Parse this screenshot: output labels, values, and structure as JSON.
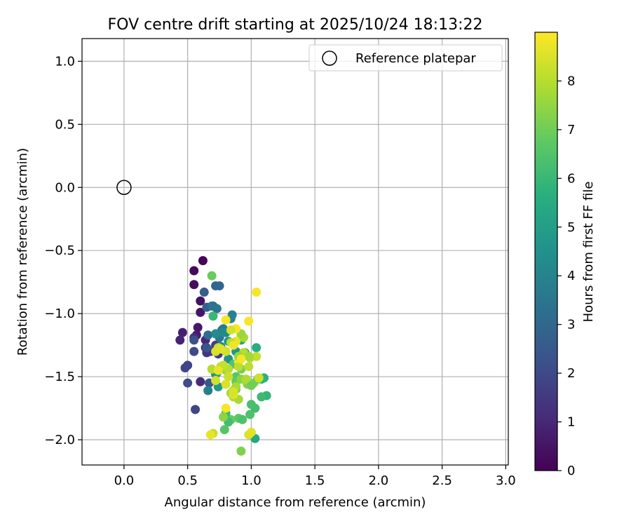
{
  "chart_data": {
    "type": "scatter",
    "title": "FOV centre drift starting at 2025/10/24 18:13:22",
    "xlabel": "Angular distance from reference (arcmin)",
    "ylabel": "Rotation from reference (arcmin)",
    "xlim": [
      -0.33,
      3.02
    ],
    "ylim": [
      -2.2,
      1.18
    ],
    "xticks": [
      0.0,
      0.5,
      1.0,
      1.5,
      2.0,
      2.5,
      3.0
    ],
    "xtick_labels": [
      "0.0",
      "0.5",
      "1.0",
      "1.5",
      "2.0",
      "2.5",
      "3.0"
    ],
    "yticks": [
      1.0,
      0.5,
      0.0,
      -0.5,
      -1.0,
      -1.5,
      -2.0
    ],
    "ytick_labels": [
      "1.0",
      "0.5",
      "0.0",
      "−0.5",
      "−1.0",
      "−1.5",
      "−2.0"
    ],
    "grid": true,
    "legend": {
      "position": "top-right",
      "entries": [
        "Reference platepar"
      ]
    },
    "reference_point": {
      "x": 0.0,
      "y": 0.0,
      "label": "Reference platepar"
    },
    "colorbar": {
      "label": "Hours from first FF file",
      "range": [
        0,
        9
      ],
      "ticks": [
        0,
        1,
        2,
        3,
        4,
        5,
        6,
        7,
        8
      ],
      "tick_labels": [
        "0",
        "1",
        "2",
        "3",
        "4",
        "5",
        "6",
        "7",
        "8"
      ],
      "colormap": "viridis"
    },
    "series": [
      {
        "name": "FOV centre drift",
        "x": [
          0.62,
          0.55,
          0.55,
          0.6,
          0.6,
          0.58,
          0.57,
          0.46,
          0.44,
          0.64,
          0.55,
          0.64,
          0.65,
          0.68,
          0.74,
          0.72,
          0.5,
          0.48,
          0.55,
          0.5,
          0.6,
          0.56,
          0.55,
          0.67,
          0.63,
          0.65,
          0.7,
          0.72,
          0.75,
          0.77,
          0.66,
          0.69,
          0.73,
          0.75,
          0.78,
          0.66,
          0.85,
          0.84,
          0.8,
          0.78,
          0.72,
          0.76,
          0.82,
          0.82,
          0.88,
          0.74,
          0.65,
          0.8,
          0.72,
          0.73,
          0.69,
          0.7,
          0.92,
          0.98,
          0.95,
          1.04,
          1.1,
          1.08,
          1.12,
          1.08,
          1.03,
          1.0,
          0.99,
          1.03,
          0.86,
          0.88,
          0.9,
          0.84,
          0.8,
          0.82,
          0.93,
          0.79,
          0.88,
          0.88,
          0.92,
          1.02,
          0.97,
          0.92,
          0.78,
          0.8,
          0.84,
          0.9,
          0.86,
          1.05,
          0.92,
          0.78,
          0.86,
          0.88,
          0.82,
          0.76,
          0.7,
          0.74,
          0.8,
          0.98,
          1.0,
          0.88,
          0.9,
          0.94,
          0.98,
          1.04,
          1.06,
          0.72,
          0.8,
          0.86,
          0.68,
          0.92,
          0.98,
          0.69,
          0.9,
          0.72,
          0.76,
          0.84,
          0.9,
          0.94,
          0.96,
          0.99,
          0.78,
          0.82,
          0.86,
          0.92,
          0.98,
          0.74,
          0.86,
          0.8,
          0.88,
          0.92,
          1.0,
          1.04,
          0.84,
          0.8
        ],
        "y": [
          -0.58,
          -0.66,
          -0.77,
          -0.9,
          -0.99,
          -1.11,
          -1.17,
          -1.15,
          -1.21,
          -1.21,
          -1.19,
          -1.27,
          -1.31,
          -1.3,
          -1.32,
          -1.25,
          -1.41,
          -1.43,
          -1.3,
          -1.55,
          -1.54,
          -1.76,
          -1.21,
          -1.55,
          -0.83,
          -0.95,
          -0.94,
          -0.78,
          -0.78,
          -1.13,
          -1.17,
          -0.94,
          -0.96,
          -1.19,
          -1.12,
          -1.61,
          -1.01,
          -1.04,
          -1.15,
          -1.15,
          -1.16,
          -1.26,
          -1.36,
          -1.22,
          -1.3,
          -1.58,
          -1.27,
          -1.3,
          -1.48,
          -1.47,
          -0.7,
          -1.02,
          -1.21,
          -1.34,
          -1.31,
          -1.27,
          -1.51,
          -1.52,
          -1.65,
          -1.66,
          -1.75,
          -1.72,
          -1.8,
          -1.99,
          -1.4,
          -1.5,
          -1.83,
          -1.84,
          -1.79,
          -1.86,
          -1.84,
          -1.92,
          -1.54,
          -1.6,
          -1.44,
          -1.55,
          -1.56,
          -1.52,
          -1.43,
          -1.45,
          -1.63,
          -1.68,
          -1.66,
          -1.52,
          -2.09,
          -1.82,
          -1.61,
          -1.58,
          -1.44,
          -1.42,
          -1.95,
          -1.27,
          -1.3,
          -1.96,
          -1.94,
          -1.22,
          -1.38,
          -1.31,
          -1.42,
          -1.34,
          -1.51,
          -1.53,
          -1.56,
          -1.64,
          -1.96,
          -1.18,
          -1.06,
          -1.44,
          -1.34,
          -1.3,
          -1.28,
          -1.23,
          -1.42,
          -1.19,
          -1.52,
          -1.35,
          -1.41,
          -1.5,
          -1.62,
          -1.16,
          -1.34,
          -1.45,
          -1.25,
          -1.05,
          -1.12,
          -1.36,
          -1.57,
          -0.83,
          -1.13,
          -1.75
        ],
        "c": [
          0.1,
          0.2,
          0.3,
          0.4,
          0.5,
          0.6,
          0.7,
          0.8,
          0.9,
          1.0,
          1.2,
          1.3,
          1.4,
          1.5,
          1.6,
          1.7,
          1.8,
          1.9,
          2.0,
          2.1,
          1.1,
          1.9,
          2.2,
          2.5,
          2.6,
          2.7,
          2.8,
          2.9,
          3.0,
          3.1,
          3.2,
          3.4,
          3.5,
          3.6,
          3.7,
          3.8,
          3.9,
          4.0,
          4.1,
          4.2,
          4.3,
          4.4,
          4.5,
          4.6,
          4.7,
          4.8,
          2.4,
          3.3,
          3.9,
          4.9,
          6.9,
          6.0,
          5.1,
          5.3,
          5.5,
          5.6,
          5.7,
          5.8,
          5.9,
          6.1,
          6.2,
          6.3,
          6.4,
          5.4,
          6.5,
          6.6,
          6.7,
          6.8,
          6.0,
          6.2,
          6.4,
          6.6,
          6.8,
          7.0,
          7.1,
          7.2,
          7.3,
          7.4,
          7.5,
          7.6,
          7.7,
          7.8,
          7.9,
          7.0,
          7.2,
          7.4,
          7.6,
          7.8,
          8.0,
          8.1,
          8.2,
          8.3,
          8.4,
          8.5,
          8.6,
          8.7,
          8.8,
          8.0,
          8.1,
          8.2,
          8.3,
          8.4,
          8.5,
          8.6,
          8.7,
          8.8,
          8.9,
          8.0,
          7.5,
          8.5,
          8.6,
          8.0,
          8.1,
          7.8,
          7.9,
          8.0,
          8.2,
          8.3,
          8.5,
          7.6,
          7.7,
          8.7,
          8.8,
          8.9,
          8.9,
          8.9,
          7.0,
          8.9,
          8.4,
          8.9
        ]
      }
    ]
  }
}
